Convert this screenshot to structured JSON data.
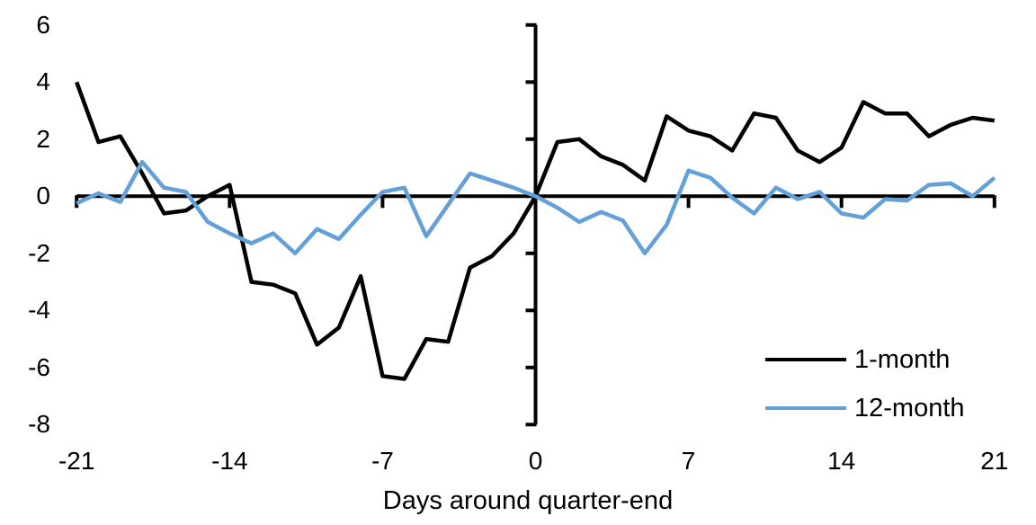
{
  "chart_data": {
    "type": "line",
    "title": "",
    "xlabel": "Days around quarter-end",
    "ylabel": "",
    "grid": false,
    "legend_position": "lower-right",
    "xlim": [
      -21,
      21
    ],
    "ylim": [
      -8,
      6
    ],
    "x_tick_labels": [
      -21,
      -14,
      -7,
      0,
      7,
      14,
      21
    ],
    "y_tick_labels": [
      6,
      4,
      2,
      0,
      -2,
      -4,
      -6,
      -8
    ],
    "x_tick_marks": [
      -21,
      -14,
      -7,
      7,
      14,
      21
    ],
    "y_tick_marks": [
      6,
      4,
      2,
      -2,
      -4,
      -6,
      -8
    ],
    "axis_color": "#000000",
    "x": [
      -21,
      -20,
      -19,
      -18,
      -17,
      -16,
      -15,
      -14,
      -13,
      -12,
      -11,
      -10,
      -9,
      -8,
      -7,
      -6,
      -5,
      -4,
      -3,
      -2,
      -1,
      0,
      1,
      2,
      3,
      4,
      5,
      6,
      7,
      8,
      9,
      10,
      11,
      12,
      13,
      14,
      15,
      16,
      17,
      18,
      19,
      20,
      21
    ],
    "series": [
      {
        "name": "1-month",
        "color": "#000000",
        "values": [
          4.0,
          1.9,
          2.1,
          0.8,
          -0.6,
          -0.5,
          0.0,
          0.4,
          -3.0,
          -3.1,
          -3.4,
          -5.2,
          -4.6,
          -2.8,
          -6.3,
          -6.4,
          -5.0,
          -5.1,
          -2.5,
          -2.1,
          -1.3,
          0.0,
          1.9,
          2.0,
          1.4,
          1.1,
          0.55,
          2.8,
          2.3,
          2.1,
          1.6,
          2.9,
          2.75,
          1.6,
          1.2,
          1.7,
          3.3,
          2.9,
          2.9,
          2.1,
          2.5,
          2.75,
          2.65
        ]
      },
      {
        "name": "12-month",
        "color": "#63A0D8",
        "values": [
          -0.25,
          0.1,
          -0.2,
          1.2,
          0.3,
          0.15,
          -0.9,
          -1.3,
          -1.65,
          -1.3,
          -2.0,
          -1.15,
          -1.5,
          -0.65,
          0.15,
          0.3,
          -1.4,
          -0.3,
          0.8,
          0.55,
          0.3,
          0.0,
          -0.4,
          -0.9,
          -0.55,
          -0.85,
          -2.0,
          -1.0,
          0.9,
          0.65,
          -0.05,
          -0.6,
          0.3,
          -0.1,
          0.15,
          -0.6,
          -0.75,
          -0.1,
          -0.15,
          0.4,
          0.45,
          0.0,
          0.65
        ]
      }
    ]
  }
}
